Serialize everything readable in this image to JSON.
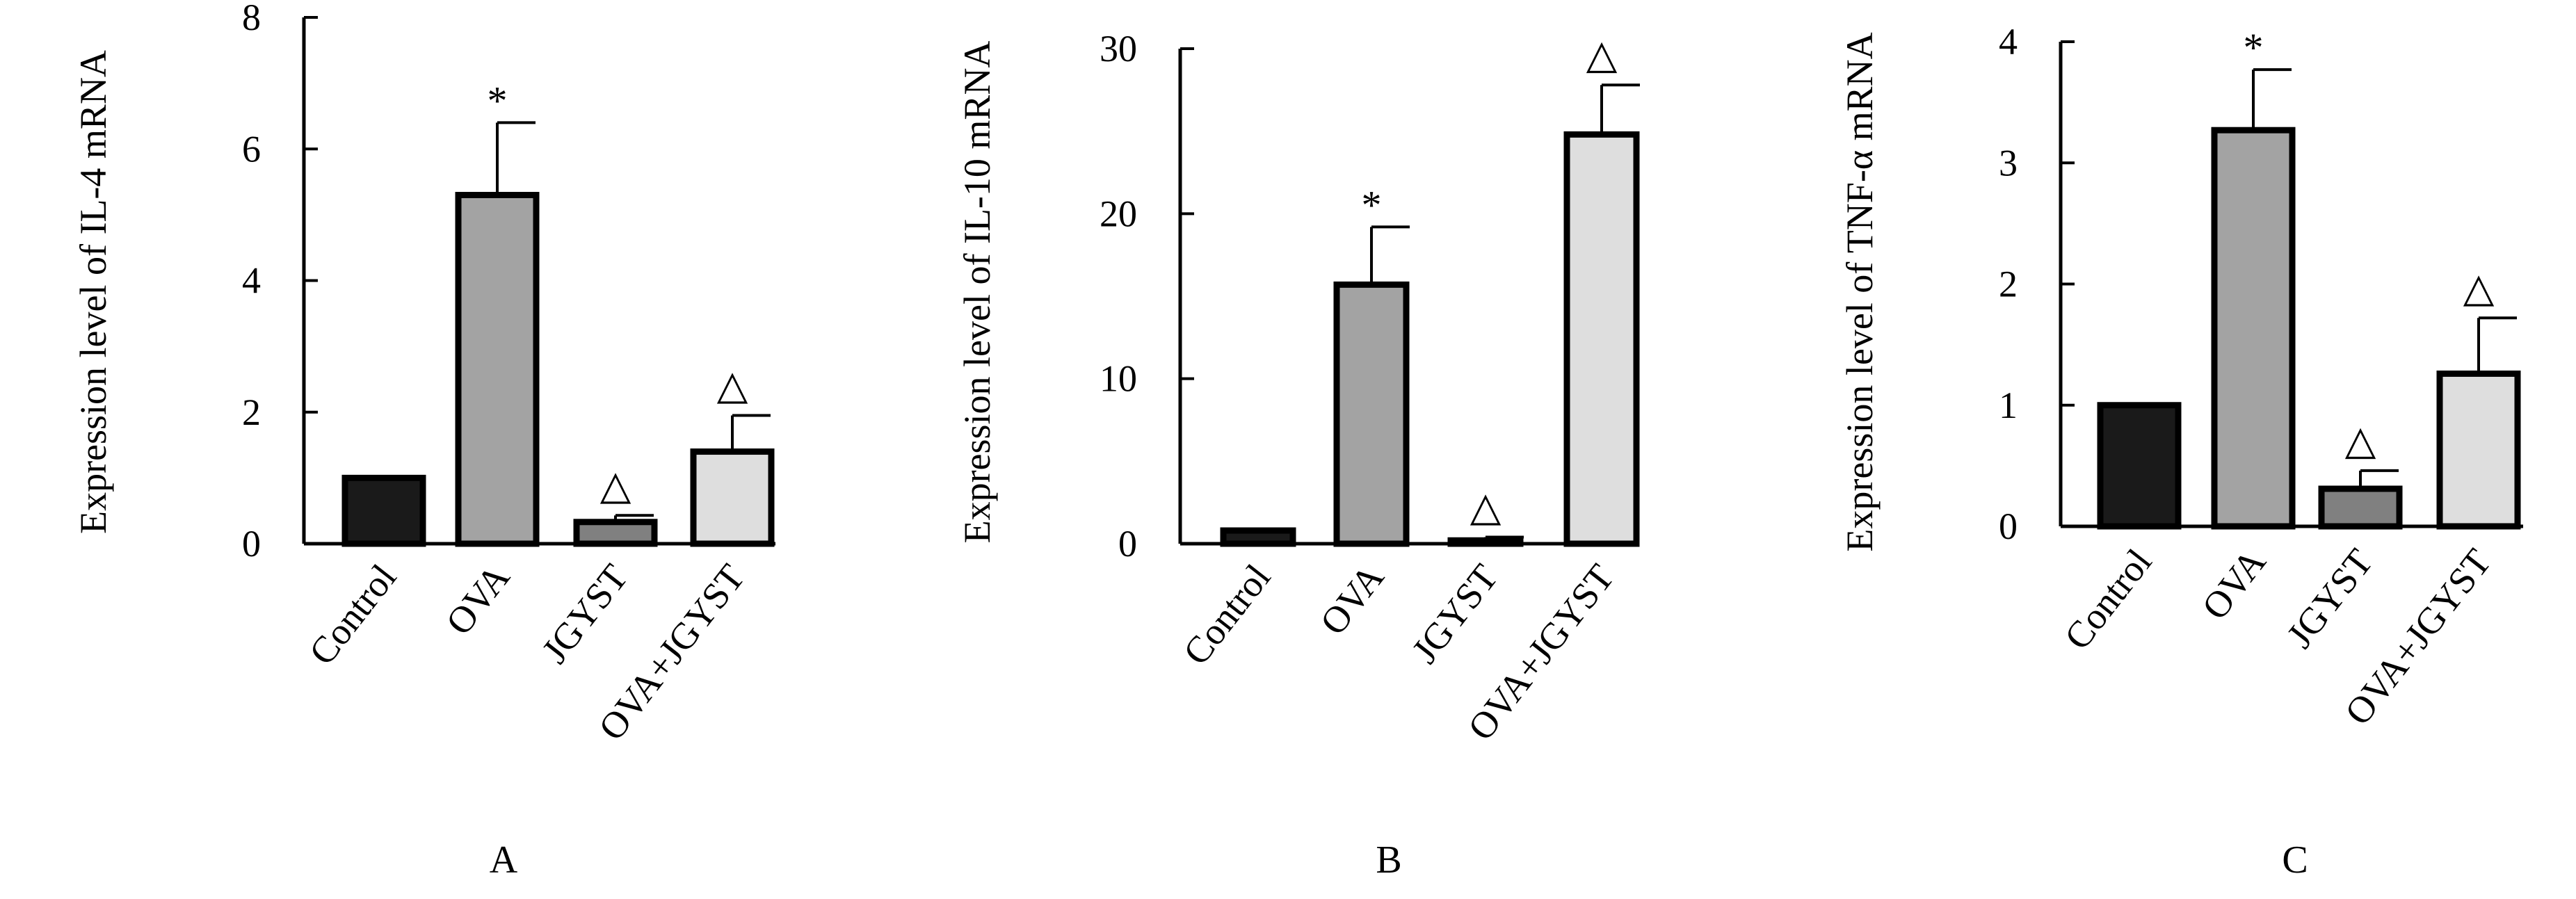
{
  "figure": {
    "panels": [
      {
        "label": "A"
      },
      {
        "label": "B"
      },
      {
        "label": "C"
      }
    ]
  },
  "chart_data": [
    {
      "type": "bar",
      "panel": "A",
      "ylabel": "Expression level of IL-4 mRNA",
      "xlabel": "",
      "categories": [
        "Control",
        "OVA",
        "JGYST",
        "OVA+JGYST"
      ],
      "values": [
        1.0,
        5.3,
        0.33,
        1.4
      ],
      "errors": [
        0,
        1.1,
        0.1,
        0.55
      ],
      "markers": [
        "",
        "*",
        "△",
        "△"
      ],
      "ylim": [
        0,
        8
      ],
      "yticks": [
        0,
        2,
        4,
        6,
        8
      ],
      "bar_colors": [
        "#1a1a1a",
        "#a3a3a3",
        "#808080",
        "#dedede"
      ],
      "grid": false,
      "legend": "none"
    },
    {
      "type": "bar",
      "panel": "B",
      "ylabel": "Expression level of IL-10 mRNA",
      "xlabel": "",
      "categories": [
        "Control",
        "OVA",
        "JGYST",
        "OVA+JGYST"
      ],
      "values": [
        0.8,
        15.7,
        0.2,
        24.8
      ],
      "errors": [
        0,
        3.5,
        0.2,
        3.0
      ],
      "markers": [
        "",
        "*",
        "△",
        "△"
      ],
      "ylim": [
        0,
        30
      ],
      "yticks": [
        0,
        10,
        20,
        30
      ],
      "bar_colors": [
        "#1a1a1a",
        "#a3a3a3",
        "#808080",
        "#dedede"
      ],
      "grid": false,
      "legend": "none"
    },
    {
      "type": "bar",
      "panel": "C",
      "ylabel": "Expression level of TNF-α mRNA",
      "xlabel": "",
      "categories": [
        "Control",
        "OVA",
        "JGYST",
        "OVA+JGYST"
      ],
      "values": [
        1.0,
        3.27,
        0.31,
        1.26
      ],
      "errors": [
        0,
        0.5,
        0.15,
        0.46
      ],
      "markers": [
        "",
        "*",
        "△",
        "△"
      ],
      "ylim": [
        0,
        4
      ],
      "yticks": [
        0,
        1,
        2,
        3,
        4
      ],
      "bar_colors": [
        "#1a1a1a",
        "#a3a3a3",
        "#808080",
        "#dedede"
      ],
      "grid": false,
      "legend": "none"
    }
  ]
}
